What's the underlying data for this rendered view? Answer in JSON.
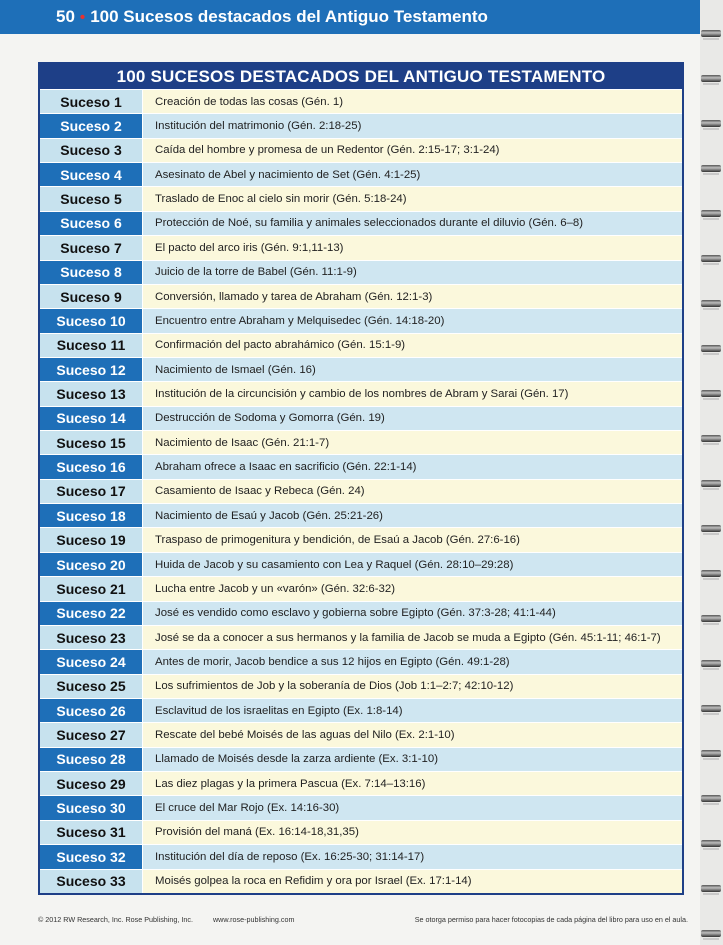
{
  "header": {
    "page_number": "50",
    "separator": "•",
    "title": "100 Sucesos destacados del Antiguo Testamento"
  },
  "table": {
    "title": "100 SUCESOS DESTACADOS DEL ANTIGUO TESTAMENTO",
    "rows": [
      {
        "label": "Suceso 1",
        "text": "Creación de todas las cosas (Gén. 1)"
      },
      {
        "label": "Suceso 2",
        "text": "Institución del matrimonio (Gén. 2:18-25)"
      },
      {
        "label": "Suceso 3",
        "text": "Caída del hombre y promesa de un Redentor (Gén. 2:15-17; 3:1-24)"
      },
      {
        "label": "Suceso 4",
        "text": "Asesinato de Abel y nacimiento de Set (Gén. 4:1-25)"
      },
      {
        "label": "Suceso 5",
        "text": "Traslado de Enoc al cielo sin morir (Gén. 5:18-24)"
      },
      {
        "label": "Suceso 6",
        "text": "Protección de Noé, su familia y animales seleccionados durante el diluvio (Gén. 6–8)"
      },
      {
        "label": "Suceso 7",
        "text": "El pacto del arco iris (Gén. 9:1,11-13)"
      },
      {
        "label": "Suceso 8",
        "text": "Juicio de la torre de Babel (Gén. 11:1-9)"
      },
      {
        "label": "Suceso 9",
        "text": "Conversión, llamado y tarea de Abraham (Gén. 12:1-3)"
      },
      {
        "label": "Suceso 10",
        "text": "Encuentro entre Abraham y Melquisedec (Gén. 14:18-20)"
      },
      {
        "label": "Suceso 11",
        "text": "Confirmación del pacto abrahámico (Gén. 15:1-9)"
      },
      {
        "label": "Suceso 12",
        "text": "Nacimiento de Ismael (Gén. 16)"
      },
      {
        "label": "Suceso 13",
        "text": "Institución de la circuncisión y cambio de los nombres de Abram y Sarai (Gén. 17)"
      },
      {
        "label": "Suceso 14",
        "text": "Destrucción de Sodoma y Gomorra (Gén. 19)"
      },
      {
        "label": "Suceso 15",
        "text": "Nacimiento de Isaac (Gén. 21:1-7)"
      },
      {
        "label": "Suceso 16",
        "text": "Abraham ofrece a Isaac en sacrificio (Gén. 22:1-14)"
      },
      {
        "label": "Suceso 17",
        "text": "Casamiento de Isaac y Rebeca (Gén. 24)"
      },
      {
        "label": "Suceso 18",
        "text": "Nacimiento de Esaú y Jacob (Gén. 25:21-26)"
      },
      {
        "label": "Suceso 19",
        "text": "Traspaso de primogenitura y bendición, de Esaú a Jacob (Gén. 27:6-16)"
      },
      {
        "label": "Suceso 20",
        "text": "Huida de Jacob y su casamiento con Lea y Raquel (Gén. 28:10–29:28)"
      },
      {
        "label": "Suceso 21",
        "text": "Lucha entre Jacob y un «varón» (Gén. 32:6-32)"
      },
      {
        "label": "Suceso 22",
        "text": "José es vendido como esclavo y gobierna sobre Egipto (Gén. 37:3-28; 41:1-44)"
      },
      {
        "label": "Suceso 23",
        "text": "José se da a conocer a sus hermanos y la familia de Jacob se muda a Egipto (Gén. 45:1-11; 46:1-7)"
      },
      {
        "label": "Suceso 24",
        "text": "Antes de morir, Jacob bendice a sus 12 hijos en Egipto (Gén. 49:1-28)"
      },
      {
        "label": "Suceso 25",
        "text": "Los sufrimientos de Job y la soberanía de Dios (Job 1:1–2:7; 42:10-12)"
      },
      {
        "label": "Suceso 26",
        "text": "Esclavitud de los israelitas en Egipto (Ex. 1:8-14)"
      },
      {
        "label": "Suceso 27",
        "text": "Rescate del bebé Moisés de las aguas del Nilo (Ex. 2:1-10)"
      },
      {
        "label": "Suceso 28",
        "text": "Llamado de Moisés desde la zarza ardiente (Ex. 3:1-10)"
      },
      {
        "label": "Suceso 29",
        "text": "Las diez plagas y la primera Pascua (Ex. 7:14–13:16)"
      },
      {
        "label": "Suceso 30",
        "text": "El cruce del Mar Rojo (Ex. 14:16-30)"
      },
      {
        "label": "Suceso 31",
        "text": "Provisión del maná (Ex. 16:14-18,31,35)"
      },
      {
        "label": "Suceso 32",
        "text": "Institución del día de reposo (Ex. 16:25-30; 31:14-17)"
      },
      {
        "label": "Suceso 33",
        "text": "Moisés golpea la roca en Refidim y ora por Israel (Ex. 17:1-14)"
      }
    ]
  },
  "footer": {
    "copyright": "© 2012 RW Research, Inc. Rose Publishing, Inc.",
    "website": "www.rose-publishing.com",
    "permission": "Se otorga permiso para hacer fotocopias de cada página del libro para uso en el aula."
  },
  "colors": {
    "header_blue": "#1e6fb8",
    "table_navy": "#1e3f87",
    "light_blue": "#c7e2ee",
    "cream": "#fbf8dc",
    "dot_red": "#e8312e"
  }
}
